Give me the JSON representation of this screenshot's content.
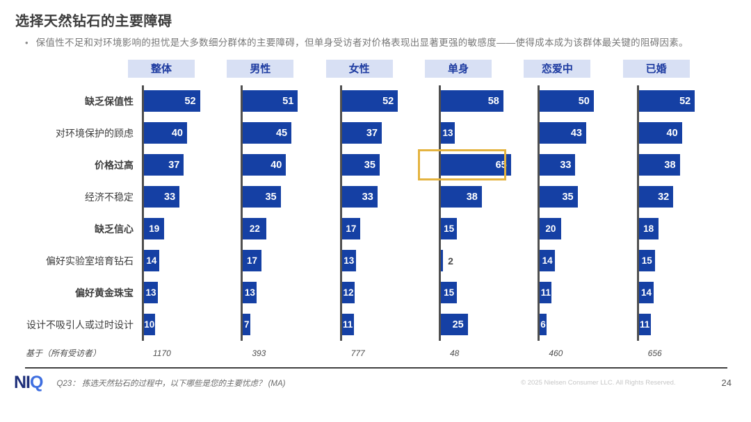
{
  "page": {
    "title": "选择天然钻石的主要障碍",
    "bullet": "保值性不足和对环境影响的担忧是大多数细分群体的主要障碍，但单身受访者对价格表现出显著更强的敏感度——使得成本成为该群体最关键的阻碍因素。",
    "page_number": "24"
  },
  "footer": {
    "logo_ni": "NI",
    "logo_q": "Q",
    "question": "Q23： 拣选天然钻石的过程中，以下哪些是您的主要忧虑？ (MA)",
    "copyright": "© 2025 Nielsen Consumer LLC. All Rights Reserved."
  },
  "chart_data": {
    "type": "bar",
    "orientation": "horizontal",
    "title": "选择天然钻石的主要障碍",
    "xlim": [
      0,
      70
    ],
    "grid": false,
    "bar_color": "#1540a4",
    "axis_color": "#4f4f4f",
    "header_bg": "#d8e0f4",
    "header_text_color": "#1c3aa0",
    "base_label": "基于（所有受访者）",
    "categories": [
      "缺乏保值性",
      "对环境保护的顾虑",
      "价格过高",
      "经济不稳定",
      "缺乏信心",
      "偏好实验室培育钻石",
      "偏好黄金珠宝",
      "设计不吸引人或过时设计"
    ],
    "category_bold": [
      true,
      false,
      true,
      false,
      true,
      false,
      true,
      false
    ],
    "series": [
      {
        "name": "整体",
        "base": "1170",
        "values": [
          52,
          40,
          37,
          33,
          19,
          14,
          13,
          10
        ]
      },
      {
        "name": "男性",
        "base": "393",
        "values": [
          51,
          45,
          40,
          35,
          22,
          17,
          13,
          7
        ]
      },
      {
        "name": "女性",
        "base": "777",
        "values": [
          52,
          37,
          35,
          33,
          17,
          13,
          12,
          11
        ]
      },
      {
        "name": "单身",
        "base": "48",
        "values": [
          58,
          13,
          65,
          38,
          15,
          2,
          15,
          25
        ]
      },
      {
        "name": "恋爱中",
        "base": "460",
        "values": [
          50,
          43,
          33,
          35,
          20,
          14,
          11,
          6
        ]
      },
      {
        "name": "已婚",
        "base": "656",
        "values": [
          52,
          40,
          38,
          32,
          18,
          15,
          14,
          11
        ]
      }
    ],
    "highlight": {
      "series": "单身",
      "category": "价格过高",
      "value": 65,
      "color": "#e4b33f"
    }
  }
}
